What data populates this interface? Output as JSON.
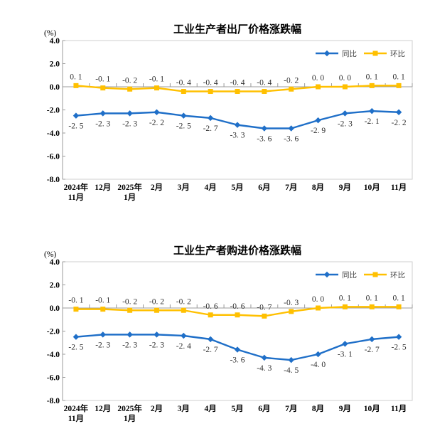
{
  "page": {
    "background_color": "#ffffff"
  },
  "chart_data": [
    {
      "type": "line",
      "title": "工业生产者出厂价格涨跌幅",
      "unit_label": "(%)",
      "xlabel": "",
      "ylabel": "(%)",
      "ylim": [
        -8.0,
        4.0
      ],
      "y_ticks": [
        4.0,
        2.0,
        0.0,
        -2.0,
        -4.0,
        -6.0,
        -8.0
      ],
      "grid": false,
      "legend_position": "top-right",
      "categories": [
        "2024年\n11月",
        "12月",
        "2025年\n1月",
        "2月",
        "3月",
        "4月",
        "5月",
        "6月",
        "7月",
        "8月",
        "9月",
        "10月",
        "11月"
      ],
      "series": [
        {
          "name": "同比",
          "color": "#1f6fc8",
          "marker": "diamond",
          "label_position": "below",
          "values": [
            -2.5,
            -2.3,
            -2.3,
            -2.2,
            -2.5,
            -2.7,
            -3.3,
            -3.6,
            -3.6,
            -2.9,
            -2.3,
            -2.1,
            -2.2
          ]
        },
        {
          "name": "环比",
          "color": "#ffc000",
          "marker": "square",
          "label_position": "above",
          "values": [
            0.1,
            -0.1,
            -0.2,
            -0.1,
            -0.4,
            -0.4,
            -0.4,
            -0.4,
            -0.2,
            0.0,
            0.0,
            0.1,
            0.1
          ]
        }
      ]
    },
    {
      "type": "line",
      "title": "工业生产者购进价格涨跌幅",
      "unit_label": "(%)",
      "xlabel": "",
      "ylabel": "(%)",
      "ylim": [
        -8.0,
        4.0
      ],
      "y_ticks": [
        4.0,
        2.0,
        0.0,
        -2.0,
        -4.0,
        -6.0,
        -8.0
      ],
      "grid": false,
      "legend_position": "top-right",
      "categories": [
        "2024年\n11月",
        "12月",
        "2025年\n1月",
        "2月",
        "3月",
        "4月",
        "5月",
        "6月",
        "7月",
        "8月",
        "9月",
        "10月",
        "11月"
      ],
      "series": [
        {
          "name": "同比",
          "color": "#1f6fc8",
          "marker": "diamond",
          "label_position": "below",
          "values": [
            -2.5,
            -2.3,
            -2.3,
            -2.3,
            -2.4,
            -2.7,
            -3.6,
            -4.3,
            -4.5,
            -4.0,
            -3.1,
            -2.7,
            -2.5
          ]
        },
        {
          "name": "环比",
          "color": "#ffc000",
          "marker": "square",
          "label_position": "above",
          "values": [
            -0.1,
            -0.1,
            -0.2,
            -0.2,
            -0.2,
            -0.6,
            -0.6,
            -0.7,
            -0.3,
            0.0,
            0.1,
            0.1,
            0.1
          ]
        }
      ]
    }
  ],
  "style_colors": {
    "plot_border": "#cfcfcf",
    "axis_line": "#9b9b9b",
    "tick_label": "#000000",
    "data_label": "#303030",
    "legend_text": "#404040"
  }
}
